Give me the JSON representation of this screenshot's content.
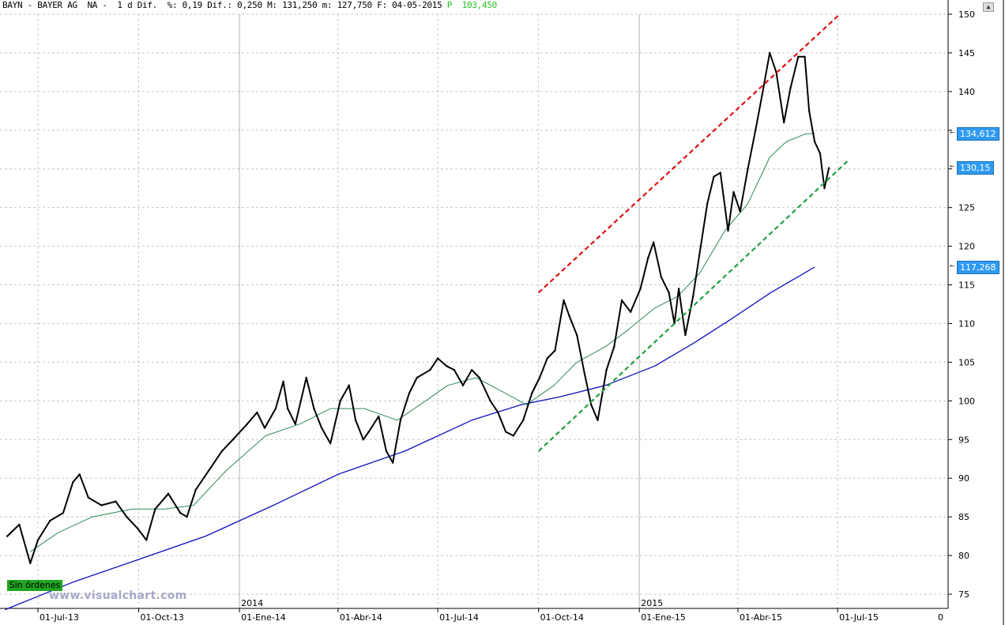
{
  "header": {
    "symbol": "BAYN",
    "text_main": "BAYN - BAYER AG  NA -  1 d Dif.  %: 0,19 Dif.: 0,250 M: 131,250 m: 127,750 F: 04-05-2015",
    "text_p": "P",
    "text_value": "103,450"
  },
  "badge": "Sin órdenes",
  "watermark": "www.visualchart.com",
  "price_tags": [
    {
      "label": "134,612",
      "value": 134.612,
      "color": "#2f9af2"
    },
    {
      "label": "130,15",
      "value": 130.15,
      "color": "#2f9af2"
    },
    {
      "label": "117,268",
      "value": 117.268,
      "color": "#2f9af2"
    }
  ],
  "colors": {
    "grid": "#c8c8c8",
    "price": "#000000",
    "ma_short": "#2e8b57",
    "ma_long": "#1010c0",
    "upper_trend": "#e01010",
    "lower_trend": "#22a040"
  },
  "chart_data": {
    "type": "line",
    "title": "BAYN - BAYER AG NA",
    "y_ticks": [
      75,
      80,
      85,
      90,
      95,
      100,
      105,
      110,
      115,
      120,
      125,
      130,
      135,
      140,
      145,
      150
    ],
    "ylim": [
      73,
      150
    ],
    "x_labels": [
      {
        "date": "2013-07-01",
        "label": "01-Jul-13"
      },
      {
        "date": "2013-10-01",
        "label": "01-Oct-13"
      },
      {
        "date": "2014-01-01",
        "label": "01-Ene-14"
      },
      {
        "date": "2014-04-01",
        "label": "01-Abr-14"
      },
      {
        "date": "2014-07-01",
        "label": "01-Jul-14"
      },
      {
        "date": "2014-10-01",
        "label": "01-Oct-14"
      },
      {
        "date": "2015-01-01",
        "label": "01-Ene-15"
      },
      {
        "date": "2015-04-01",
        "label": "01-Abr-15"
      },
      {
        "date": "2015-07-01",
        "label": "01-Jul-15"
      }
    ],
    "year_labels": [
      {
        "date": "2014-01-01",
        "label": "2014"
      },
      {
        "date": "2015-01-01",
        "label": "2015"
      }
    ],
    "x_end_label": "0",
    "grid": true,
    "series": [
      {
        "kind": "price",
        "points": [
          [
            "2013-06-03",
            82.5
          ],
          [
            "2013-06-14",
            84.0
          ],
          [
            "2013-06-24",
            79.0
          ],
          [
            "2013-07-01",
            82.0
          ],
          [
            "2013-07-12",
            84.5
          ],
          [
            "2013-07-24",
            85.5
          ],
          [
            "2013-08-02",
            89.5
          ],
          [
            "2013-08-08",
            90.5
          ],
          [
            "2013-08-16",
            87.5
          ],
          [
            "2013-08-28",
            86.5
          ],
          [
            "2013-09-10",
            87.0
          ],
          [
            "2013-09-20",
            85.0
          ],
          [
            "2013-09-30",
            83.5
          ],
          [
            "2013-10-08",
            82.0
          ],
          [
            "2013-10-16",
            86.0
          ],
          [
            "2013-10-28",
            88.0
          ],
          [
            "2013-11-08",
            85.5
          ],
          [
            "2013-11-14",
            85.0
          ],
          [
            "2013-11-22",
            88.5
          ],
          [
            "2013-12-04",
            91.0
          ],
          [
            "2013-12-16",
            93.5
          ],
          [
            "2013-12-26",
            95.0
          ],
          [
            "2014-01-08",
            97.0
          ],
          [
            "2014-01-17",
            98.5
          ],
          [
            "2014-01-24",
            96.5
          ],
          [
            "2014-02-03",
            99.0
          ],
          [
            "2014-02-10",
            102.5
          ],
          [
            "2014-02-14",
            99.0
          ],
          [
            "2014-02-21",
            97.0
          ],
          [
            "2014-03-03",
            103.0
          ],
          [
            "2014-03-10",
            99.0
          ],
          [
            "2014-03-17",
            96.5
          ],
          [
            "2014-03-25",
            94.5
          ],
          [
            "2014-04-03",
            100.0
          ],
          [
            "2014-04-11",
            102.0
          ],
          [
            "2014-04-17",
            97.5
          ],
          [
            "2014-04-24",
            95.0
          ],
          [
            "2014-04-29",
            96.0
          ],
          [
            "2014-05-08",
            98.0
          ],
          [
            "2014-05-15",
            93.5
          ],
          [
            "2014-05-21",
            92.0
          ],
          [
            "2014-05-28",
            97.5
          ],
          [
            "2014-06-05",
            101.0
          ],
          [
            "2014-06-12",
            103.0
          ],
          [
            "2014-06-24",
            104.0
          ],
          [
            "2014-07-01",
            105.5
          ],
          [
            "2014-07-09",
            104.5
          ],
          [
            "2014-07-16",
            104.0
          ],
          [
            "2014-07-24",
            102.0
          ],
          [
            "2014-08-01",
            104.0
          ],
          [
            "2014-08-08",
            103.0
          ],
          [
            "2014-08-18",
            100.0
          ],
          [
            "2014-08-25",
            98.5
          ],
          [
            "2014-09-01",
            96.0
          ],
          [
            "2014-09-08",
            95.5
          ],
          [
            "2014-09-17",
            97.5
          ],
          [
            "2014-09-25",
            101.0
          ],
          [
            "2014-10-02",
            103.0
          ],
          [
            "2014-10-09",
            105.5
          ],
          [
            "2014-10-16",
            106.5
          ],
          [
            "2014-10-24",
            113.0
          ],
          [
            "2014-10-29",
            111.0
          ],
          [
            "2014-11-05",
            108.5
          ],
          [
            "2014-11-12",
            103.5
          ],
          [
            "2014-11-18",
            99.5
          ],
          [
            "2014-11-24",
            97.5
          ],
          [
            "2014-12-02",
            104.0
          ],
          [
            "2014-12-09",
            107.0
          ],
          [
            "2014-12-16",
            113.0
          ],
          [
            "2014-12-24",
            111.5
          ],
          [
            "2015-01-02",
            114.5
          ],
          [
            "2015-01-09",
            118.5
          ],
          [
            "2015-01-14",
            120.5
          ],
          [
            "2015-01-21",
            116.0
          ],
          [
            "2015-01-28",
            114.0
          ],
          [
            "2015-02-02",
            110.0
          ],
          [
            "2015-02-06",
            114.5
          ],
          [
            "2015-02-12",
            108.5
          ],
          [
            "2015-02-19",
            113.5
          ],
          [
            "2015-02-26",
            120.0
          ],
          [
            "2015-03-04",
            125.5
          ],
          [
            "2015-03-10",
            129.0
          ],
          [
            "2015-03-16",
            129.5
          ],
          [
            "2015-03-23",
            122.0
          ],
          [
            "2015-03-28",
            127.0
          ],
          [
            "2015-04-03",
            124.5
          ],
          [
            "2015-04-10",
            130.0
          ],
          [
            "2015-04-17",
            135.0
          ],
          [
            "2015-04-23",
            139.5
          ],
          [
            "2015-04-30",
            145.0
          ],
          [
            "2015-05-06",
            142.5
          ],
          [
            "2015-05-13",
            136.0
          ],
          [
            "2015-05-19",
            140.5
          ],
          [
            "2015-05-26",
            144.5
          ],
          [
            "2015-06-01",
            144.5
          ],
          [
            "2015-06-05",
            137.5
          ],
          [
            "2015-06-10",
            133.5
          ],
          [
            "2015-06-15",
            132.0
          ],
          [
            "2015-06-19",
            127.5
          ],
          [
            "2015-06-23",
            130.1
          ]
        ]
      },
      {
        "kind": "ma_short",
        "points": [
          [
            "2013-06-24",
            80.5
          ],
          [
            "2013-07-20",
            83.0
          ],
          [
            "2013-08-20",
            85.0
          ],
          [
            "2013-09-25",
            86.0
          ],
          [
            "2013-10-25",
            86.0
          ],
          [
            "2013-11-20",
            86.5
          ],
          [
            "2013-12-20",
            91.0
          ],
          [
            "2014-01-25",
            95.5
          ],
          [
            "2014-02-25",
            97.0
          ],
          [
            "2014-03-25",
            99.0
          ],
          [
            "2014-04-25",
            99.0
          ],
          [
            "2014-05-25",
            97.5
          ],
          [
            "2014-06-20",
            100.0
          ],
          [
            "2014-07-10",
            102.0
          ],
          [
            "2014-08-05",
            103.0
          ],
          [
            "2014-08-25",
            101.5
          ],
          [
            "2014-09-20",
            99.5
          ],
          [
            "2014-10-15",
            102.0
          ],
          [
            "2014-11-05",
            105.0
          ],
          [
            "2014-12-01",
            107.0
          ],
          [
            "2014-12-20",
            109.0
          ],
          [
            "2015-01-15",
            112.0
          ],
          [
            "2015-02-05",
            113.5
          ],
          [
            "2015-02-25",
            116.5
          ],
          [
            "2015-03-20",
            122.0
          ],
          [
            "2015-04-10",
            125.5
          ],
          [
            "2015-04-30",
            131.5
          ],
          [
            "2015-05-15",
            133.5
          ],
          [
            "2015-06-01",
            134.5
          ],
          [
            "2015-06-10",
            134.6
          ]
        ]
      },
      {
        "kind": "ma_long",
        "points": [
          [
            "2013-06-01",
            73.0
          ],
          [
            "2013-08-01",
            76.5
          ],
          [
            "2013-10-01",
            79.5
          ],
          [
            "2013-12-01",
            82.5
          ],
          [
            "2014-02-01",
            86.5
          ],
          [
            "2014-04-01",
            90.5
          ],
          [
            "2014-06-01",
            93.5
          ],
          [
            "2014-08-01",
            97.5
          ],
          [
            "2014-09-15",
            99.5
          ],
          [
            "2014-10-20",
            100.5
          ],
          [
            "2014-12-01",
            102.0
          ],
          [
            "2015-01-15",
            104.5
          ],
          [
            "2015-02-20",
            107.5
          ],
          [
            "2015-03-25",
            110.5
          ],
          [
            "2015-05-01",
            114.0
          ],
          [
            "2015-06-10",
            117.3
          ]
        ]
      }
    ],
    "trendlines": [
      {
        "kind": "upper_trend",
        "points": [
          [
            "2014-10-01",
            114.0
          ],
          [
            "2015-07-03",
            150.0
          ]
        ]
      },
      {
        "kind": "lower_trend",
        "points": [
          [
            "2014-10-01",
            93.5
          ],
          [
            "2015-07-10",
            131.0
          ]
        ]
      }
    ]
  }
}
